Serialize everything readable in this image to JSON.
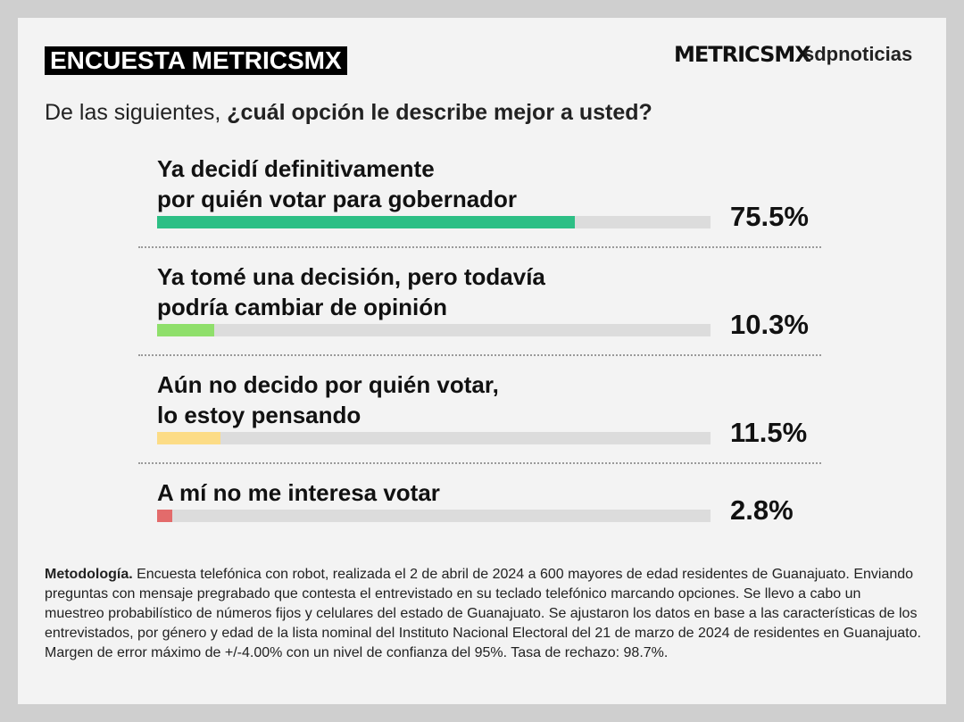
{
  "chart_data": {
    "type": "bar",
    "title": "ENCUESTA METRICSMX",
    "logos": [
      "METRICSMX",
      "sdpnoticias"
    ],
    "question": {
      "intro": "De las siguientes, ",
      "emphasis": "¿cuál opción le describe mejor a usted?"
    },
    "categories": [
      "Ya decidí definitivamente\npor quién votar para gobernador",
      "Ya tomé una decisión, pero todavía\npodría cambiar de opinión",
      "Aún no decido por quién votar,\nlo estoy pensando",
      "A mí no me interesa votar"
    ],
    "values": [
      75.5,
      10.3,
      11.5,
      2.8
    ],
    "value_labels": [
      "75.5%",
      "10.3%",
      "11.5%",
      "2.8%"
    ],
    "colors": [
      "#2dbf85",
      "#8fdf6b",
      "#fcdc86",
      "#e36b6b"
    ],
    "xlim": [
      0,
      100
    ],
    "note_label": "Metodología.",
    "note": " Encuesta telefónica con robot, realizada el 2 de abril de 2024 a 600 mayores de edad residentes de Guanajuato. Enviando preguntas con mensaje pregrabado que contesta el entrevistado en su teclado telefónico marcando opciones. Se llevo a cabo un muestreo probabilístico de números fijos y celulares del estado de Guanajuato. Se ajustaron los datos en base a las características de los entrevistados, por género y edad de la lista nominal del Instituto Nacional Electoral del 21 de marzo de 2024 de residentes en Guanajuato. Margen de error máximo de +/-4.00% con un nivel de confianza del 95%. Tasa de rechazo: 98.7%."
  }
}
